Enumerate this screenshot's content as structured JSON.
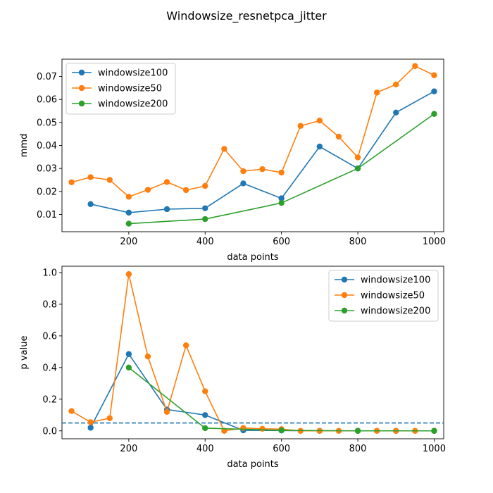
{
  "figure": {
    "title": "Windowsize_resnetpca_jitter"
  },
  "chart_data": [
    {
      "type": "line",
      "xlabel": "data points",
      "ylabel": "mmd",
      "xlim": [
        25,
        1025
      ],
      "ylim": [
        0.0025,
        0.0775
      ],
      "xticks": [
        200,
        400,
        600,
        800,
        1000
      ],
      "yticks": [
        0.01,
        0.02,
        0.03,
        0.04,
        0.05,
        0.06,
        0.07
      ],
      "ytick_labels": [
        "0.01",
        "0.02",
        "0.03",
        "0.04",
        "0.05",
        "0.06",
        "0.07"
      ],
      "legend_position": "top-left",
      "series": [
        {
          "name": "windowsize100",
          "color": "#1f77b4",
          "x": [
            100,
            200,
            300,
            400,
            500,
            600,
            700,
            800,
            900,
            1000
          ],
          "y": [
            0.0145,
            0.0108,
            0.0123,
            0.0127,
            0.0235,
            0.017,
            0.0395,
            0.03,
            0.0543,
            0.0635
          ]
        },
        {
          "name": "windowsize50",
          "color": "#ff7f0e",
          "x": [
            50,
            100,
            150,
            200,
            250,
            300,
            350,
            400,
            450,
            500,
            550,
            600,
            650,
            700,
            750,
            800,
            850,
            900,
            950,
            1000
          ],
          "y": [
            0.024,
            0.0262,
            0.025,
            0.0177,
            0.0207,
            0.0241,
            0.0206,
            0.0224,
            0.0385,
            0.0288,
            0.0297,
            0.0282,
            0.0485,
            0.0508,
            0.0438,
            0.0348,
            0.063,
            0.0665,
            0.0745,
            0.0705
          ]
        },
        {
          "name": "windowsize200",
          "color": "#2ca02c",
          "x": [
            200,
            400,
            600,
            800,
            1000
          ],
          "y": [
            0.006,
            0.008,
            0.015,
            0.03,
            0.0537
          ]
        }
      ]
    },
    {
      "type": "line",
      "xlabel": "data points",
      "ylabel": "p value",
      "xlim": [
        25,
        1025
      ],
      "ylim": [
        -0.05,
        1.04
      ],
      "xticks": [
        200,
        400,
        600,
        800,
        1000
      ],
      "yticks": [
        0.0,
        0.2,
        0.4,
        0.6,
        0.8,
        1.0
      ],
      "ytick_labels": [
        "0.0",
        "0.2",
        "0.4",
        "0.6",
        "0.8",
        "1.0"
      ],
      "legend_position": "top-right",
      "reference_line": {
        "y": 0.05,
        "style": "dashed",
        "color": "#1f77b4"
      },
      "series": [
        {
          "name": "windowsize100",
          "color": "#1f77b4",
          "x": [
            100,
            200,
            300,
            400,
            500,
            600,
            700,
            800,
            900,
            1000
          ],
          "y": [
            0.02,
            0.485,
            0.135,
            0.1,
            0.003,
            0.002,
            0.0,
            0.0,
            0.0,
            0.0
          ]
        },
        {
          "name": "windowsize50",
          "color": "#ff7f0e",
          "x": [
            50,
            100,
            150,
            200,
            250,
            300,
            350,
            400,
            450,
            500,
            550,
            600,
            650,
            700,
            750,
            800,
            850,
            900,
            950,
            1000
          ],
          "y": [
            0.125,
            0.055,
            0.08,
            0.99,
            0.47,
            0.12,
            0.54,
            0.25,
            0.0,
            0.018,
            0.013,
            0.011,
            0.0,
            0.0,
            0.0,
            0.0,
            0.0,
            0.0,
            0.0,
            0.0
          ]
        },
        {
          "name": "windowsize200",
          "color": "#2ca02c",
          "x": [
            200,
            400,
            600,
            800,
            1000
          ],
          "y": [
            0.4,
            0.017,
            0.003,
            0.0,
            0.0
          ]
        }
      ]
    }
  ]
}
